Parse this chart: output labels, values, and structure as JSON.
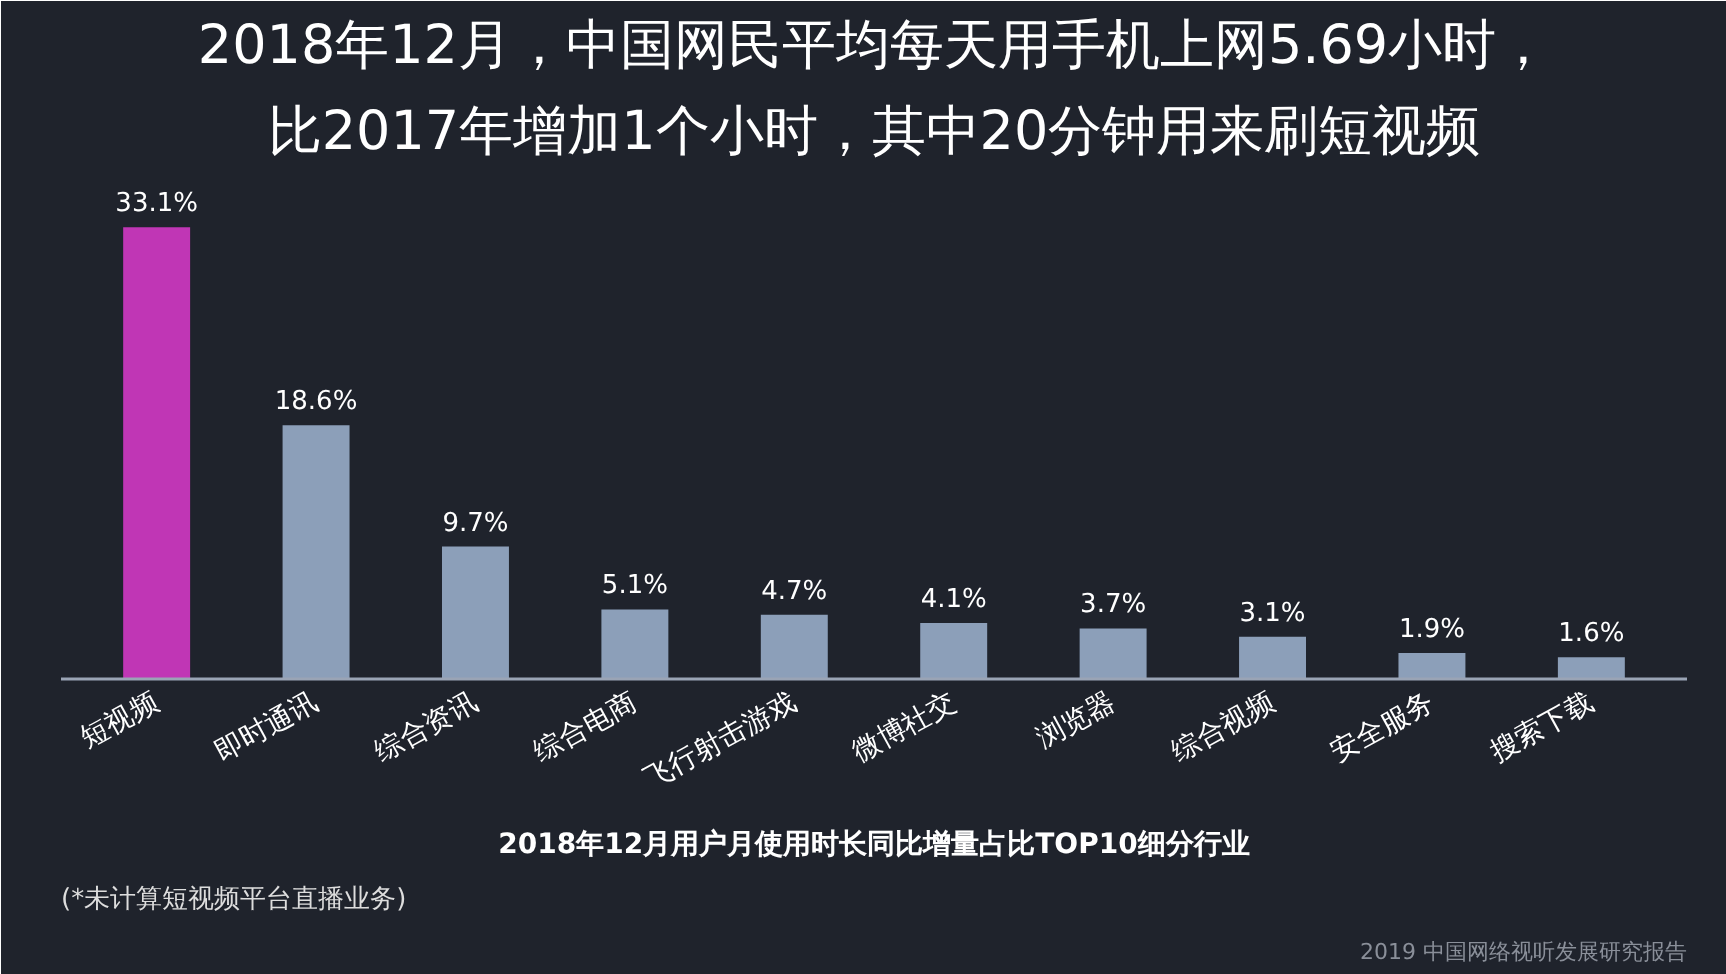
{
  "chart_data": {
    "type": "bar",
    "title": "2018年12月，中国网民平均每天用手机上网5.69小时，",
    "subtitle": "比2017年增加1个小时，其中20分钟用来刷短视频",
    "xlabel": "2018年12月用户月使用时长同比增量占比TOP10细分行业",
    "categories": [
      "短视频",
      "即时通讯",
      "综合资讯",
      "综合电商",
      "飞行射击游戏",
      "微博社交",
      "浏览器",
      "综合视频",
      "安全服务",
      "搜索下载"
    ],
    "values": [
      33.1,
      18.6,
      9.7,
      5.1,
      4.7,
      4.1,
      3.7,
      3.1,
      1.9,
      1.6
    ],
    "colors": [
      "#c036b5",
      "#8c9fb9",
      "#8c9fb9",
      "#8c9fb9",
      "#8c9fb9",
      "#8c9fb9",
      "#8c9fb9",
      "#8c9fb9",
      "#8c9fb9",
      "#8c9fb9"
    ],
    "value_labels": [
      "33.1%",
      "18.6%",
      "9.7%",
      "5.1%",
      "4.7%",
      "4.1%",
      "3.7%",
      "3.1%",
      "1.9%",
      "1.6%"
    ],
    "annotations": [
      "(*未计算短视频平台直播业务)",
      "2019 中国网络视听发展研究报告"
    ],
    "grid": false
  }
}
